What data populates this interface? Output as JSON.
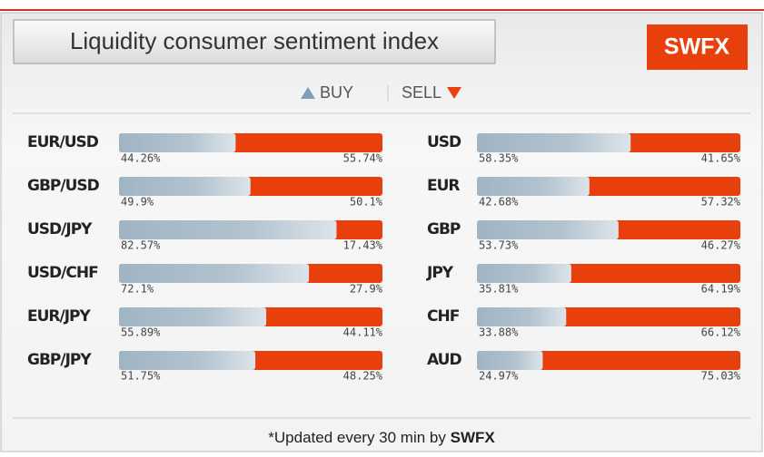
{
  "header": {
    "title": "Liquidity consumer sentiment index",
    "brand": "SWFX"
  },
  "legend": {
    "buy": "BUY",
    "sell": "SELL"
  },
  "left": [
    {
      "name": "EUR/USD",
      "values": [
        44.26,
        55.74
      ],
      "value_labels": [
        "44.26%",
        "55.74%"
      ]
    },
    {
      "name": "GBP/USD",
      "values": [
        49.9,
        50.1
      ],
      "value_labels": [
        "49.9%",
        "50.1%"
      ]
    },
    {
      "name": "USD/JPY",
      "values": [
        82.57,
        17.43
      ],
      "value_labels": [
        "82.57%",
        "17.43%"
      ]
    },
    {
      "name": "USD/CHF",
      "values": [
        72.1,
        27.9
      ],
      "value_labels": [
        "72.1%",
        "27.9%"
      ]
    },
    {
      "name": "EUR/JPY",
      "values": [
        55.89,
        44.11
      ],
      "value_labels": [
        "55.89%",
        "44.11%"
      ]
    },
    {
      "name": "GBP/JPY",
      "values": [
        51.75,
        48.25
      ],
      "value_labels": [
        "51.75%",
        "48.25%"
      ]
    }
  ],
  "right": [
    {
      "name": "USD",
      "values": [
        58.35,
        41.65
      ],
      "value_labels": [
        "58.35%",
        "41.65%"
      ]
    },
    {
      "name": "EUR",
      "values": [
        42.68,
        57.32
      ],
      "value_labels": [
        "42.68%",
        "57.32%"
      ]
    },
    {
      "name": "GBP",
      "values": [
        53.73,
        46.27
      ],
      "value_labels": [
        "53.73%",
        "46.27%"
      ]
    },
    {
      "name": "JPY",
      "values": [
        35.81,
        64.19
      ],
      "value_labels": [
        "35.81%",
        "64.19%"
      ]
    },
    {
      "name": "CHF",
      "values": [
        33.88,
        66.12
      ],
      "value_labels": [
        "33.88%",
        "66.12%"
      ]
    },
    {
      "name": "AUD",
      "values": [
        24.97,
        75.03
      ],
      "value_labels": [
        "24.97%",
        "75.03%"
      ]
    }
  ],
  "footer": {
    "text": "*Updated every 30 min by",
    "brand": "SWFX"
  }
}
